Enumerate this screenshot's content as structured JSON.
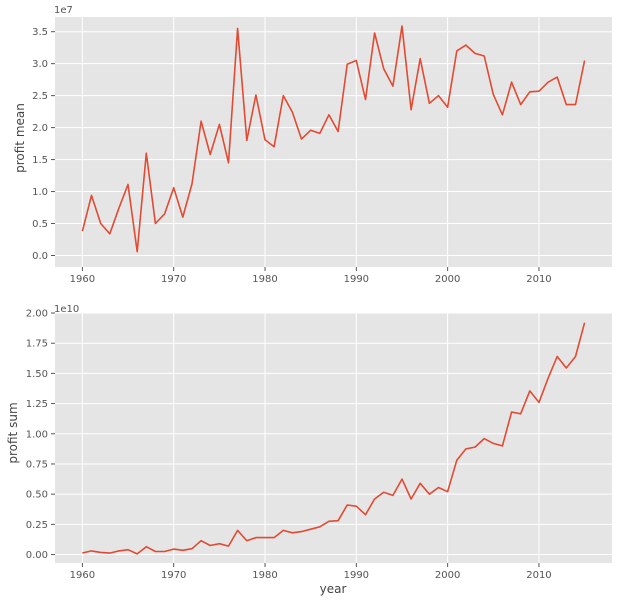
{
  "chart_data": [
    {
      "type": "line",
      "ylabel": "profit mean",
      "xlabel": "",
      "offset_label": "1e7",
      "scale": 10000000,
      "xlim": [
        1957,
        2018
      ],
      "ylim": [
        -0.18,
        3.73
      ],
      "xticks": [
        1960,
        1970,
        1980,
        1990,
        2000,
        2010
      ],
      "xtick_labels": [
        "1960",
        "1970",
        "1980",
        "1990",
        "2000",
        "2010"
      ],
      "yticks": [
        0,
        0.5,
        1.0,
        1.5,
        2.0,
        2.5,
        3.0,
        3.5
      ],
      "ytick_labels": [
        "0.0",
        "0.5",
        "1.0",
        "1.5",
        "2.0",
        "2.5",
        "3.0",
        "3.5"
      ],
      "grid": true,
      "color": "#e24a33",
      "x": [
        1960,
        1961,
        1962,
        1963,
        1964,
        1965,
        1966,
        1967,
        1968,
        1969,
        1970,
        1971,
        1972,
        1973,
        1974,
        1975,
        1976,
        1977,
        1978,
        1979,
        1980,
        1981,
        1982,
        1983,
        1984,
        1985,
        1986,
        1987,
        1988,
        1989,
        1990,
        1991,
        1992,
        1993,
        1994,
        1995,
        1996,
        1997,
        1998,
        1999,
        2000,
        2001,
        2002,
        2003,
        2004,
        2005,
        2006,
        2007,
        2008,
        2009,
        2010,
        2011,
        2012,
        2013,
        2014,
        2015
      ],
      "y": [
        0.38,
        0.94,
        0.5,
        0.34,
        0.74,
        1.11,
        0.06,
        1.6,
        0.5,
        0.65,
        1.06,
        0.6,
        1.12,
        2.1,
        1.58,
        2.05,
        1.45,
        3.55,
        1.8,
        2.51,
        1.81,
        1.7,
        2.5,
        2.24,
        1.82,
        1.96,
        1.91,
        2.2,
        1.94,
        2.99,
        3.05,
        2.44,
        3.48,
        2.92,
        2.65,
        3.59,
        2.28,
        3.08,
        2.38,
        2.5,
        2.32,
        3.2,
        3.29,
        3.16,
        3.12,
        2.52,
        2.2,
        2.71,
        2.36,
        2.56,
        2.57,
        2.71,
        2.79,
        2.36,
        2.36,
        3.05
      ]
    },
    {
      "type": "line",
      "ylabel": "profit sum",
      "xlabel": "year",
      "offset_label": "1e10",
      "scale": 10000000000,
      "xlim": [
        1957,
        2018
      ],
      "ylim": [
        -0.07,
        2.0
      ],
      "xticks": [
        1960,
        1970,
        1980,
        1990,
        2000,
        2010
      ],
      "xtick_labels": [
        "1960",
        "1970",
        "1980",
        "1990",
        "2000",
        "2010"
      ],
      "yticks": [
        0,
        0.25,
        0.5,
        0.75,
        1.0,
        1.25,
        1.5,
        1.75,
        2.0
      ],
      "ytick_labels": [
        "0.00",
        "0.25",
        "0.50",
        "0.75",
        "1.00",
        "1.25",
        "1.50",
        "1.75",
        "2.00"
      ],
      "grid": true,
      "color": "#e24a33",
      "x": [
        1960,
        1961,
        1962,
        1963,
        1964,
        1965,
        1966,
        1967,
        1968,
        1969,
        1970,
        1971,
        1972,
        1973,
        1974,
        1975,
        1976,
        1977,
        1978,
        1979,
        1980,
        1981,
        1982,
        1983,
        1984,
        1985,
        1986,
        1987,
        1988,
        1989,
        1990,
        1991,
        1992,
        1993,
        1994,
        1995,
        1996,
        1997,
        1998,
        1999,
        2000,
        2001,
        2002,
        2003,
        2004,
        2005,
        2006,
        2007,
        2008,
        2009,
        2010,
        2011,
        2012,
        2013,
        2014,
        2015
      ],
      "y": [
        0.013,
        0.03,
        0.018,
        0.012,
        0.03,
        0.04,
        0.005,
        0.065,
        0.025,
        0.025,
        0.045,
        0.035,
        0.048,
        0.115,
        0.075,
        0.09,
        0.07,
        0.2,
        0.115,
        0.14,
        0.14,
        0.14,
        0.2,
        0.18,
        0.19,
        0.21,
        0.23,
        0.275,
        0.28,
        0.41,
        0.4,
        0.33,
        0.46,
        0.515,
        0.49,
        0.625,
        0.46,
        0.59,
        0.5,
        0.555,
        0.52,
        0.78,
        0.875,
        0.89,
        0.96,
        0.92,
        0.9,
        1.18,
        1.165,
        1.355,
        1.26,
        1.46,
        1.64,
        1.545,
        1.64,
        1.92
      ]
    }
  ]
}
